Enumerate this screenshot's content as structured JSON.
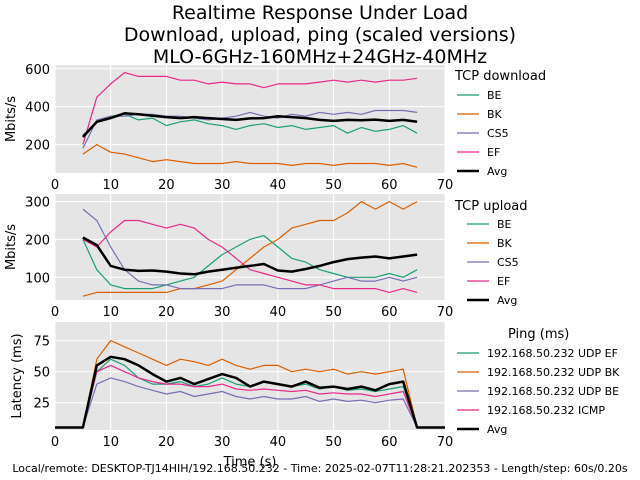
{
  "title_lines": [
    "Realtime Response Under Load",
    "Download, upload, ping (scaled versions)",
    "MLO-6GHz-160MHz+24GHz-40MHz"
  ],
  "footer": "Local/remote: DESKTOP-TJ14HIH/192.168.50.232 - Time: 2025-02-07T11:28:21.202353 - Length/step: 60s/0.20s",
  "colors": {
    "BE": "#1b9e77",
    "BK": "#d95f02",
    "CS5": "#7570b3",
    "EF": "#e7298a",
    "Avg": "#000000",
    "plot_bg": "#e5e5e5",
    "grid": "#ffffff"
  },
  "chart_data": [
    {
      "type": "line",
      "legend_title": "TCP download",
      "ylabel": "Mbits/s",
      "xlabel": "",
      "xlim": [
        0,
        70
      ],
      "ylim": [
        50,
        620
      ],
      "xticks": [
        0,
        10,
        20,
        30,
        40,
        50,
        60,
        70
      ],
      "yticks": [
        200,
        400,
        600
      ],
      "grid": true,
      "legend_position": "right",
      "x": [
        5,
        7.5,
        10,
        12.5,
        15,
        17.5,
        20,
        22.5,
        25,
        27.5,
        30,
        32.5,
        35,
        37.5,
        40,
        42.5,
        45,
        47.5,
        50,
        52.5,
        55,
        57.5,
        60,
        62.5,
        65
      ],
      "series": [
        {
          "name": "BE",
          "color_key": "BE",
          "values": [
            250,
            320,
            350,
            360,
            330,
            340,
            300,
            320,
            330,
            310,
            300,
            280,
            300,
            310,
            290,
            300,
            280,
            290,
            300,
            260,
            290,
            270,
            280,
            300,
            260
          ]
        },
        {
          "name": "BK",
          "color_key": "BK",
          "values": [
            150,
            200,
            160,
            150,
            130,
            110,
            120,
            110,
            100,
            100,
            100,
            110,
            100,
            100,
            100,
            90,
            100,
            100,
            90,
            100,
            100,
            100,
            90,
            100,
            80
          ]
        },
        {
          "name": "CS5",
          "color_key": "CS5",
          "values": [
            180,
            330,
            350,
            350,
            360,
            360,
            350,
            350,
            340,
            330,
            340,
            350,
            370,
            350,
            340,
            360,
            350,
            370,
            360,
            370,
            360,
            380,
            380,
            380,
            370
          ]
        },
        {
          "name": "EF",
          "color_key": "EF",
          "values": [
            200,
            450,
            520,
            580,
            560,
            560,
            560,
            540,
            540,
            520,
            530,
            520,
            520,
            500,
            520,
            520,
            520,
            530,
            540,
            530,
            540,
            530,
            540,
            540,
            550
          ]
        },
        {
          "name": "Avg",
          "color_key": "Avg",
          "values": [
            240,
            320,
            340,
            365,
            360,
            352,
            345,
            340,
            345,
            340,
            335,
            330,
            338,
            340,
            350,
            345,
            340,
            330,
            325,
            330,
            328,
            332,
            325,
            330,
            320
          ]
        }
      ]
    },
    {
      "type": "line",
      "legend_title": "TCP upload",
      "ylabel": "Mbits/s",
      "xlabel": "",
      "xlim": [
        0,
        70
      ],
      "ylim": [
        40,
        320
      ],
      "xticks": [
        0,
        10,
        20,
        30,
        40,
        50,
        60,
        70
      ],
      "yticks": [
        100,
        200,
        300
      ],
      "grid": true,
      "legend_position": "right",
      "x": [
        5,
        7.5,
        10,
        12.5,
        15,
        17.5,
        20,
        22.5,
        25,
        27.5,
        30,
        32.5,
        35,
        37.5,
        40,
        42.5,
        45,
        47.5,
        50,
        52.5,
        55,
        57.5,
        60,
        62.5,
        65
      ],
      "series": [
        {
          "name": "BE",
          "color_key": "BE",
          "values": [
            200,
            120,
            80,
            70,
            70,
            70,
            80,
            90,
            100,
            130,
            160,
            180,
            200,
            210,
            180,
            150,
            140,
            120,
            110,
            100,
            100,
            100,
            110,
            100,
            120
          ]
        },
        {
          "name": "BK",
          "color_key": "BK",
          "values": [
            50,
            60,
            60,
            60,
            60,
            60,
            60,
            70,
            70,
            80,
            90,
            120,
            150,
            180,
            200,
            230,
            240,
            250,
            250,
            270,
            300,
            280,
            300,
            280,
            300
          ]
        },
        {
          "name": "CS5",
          "color_key": "CS5",
          "values": [
            280,
            250,
            180,
            120,
            90,
            80,
            80,
            70,
            70,
            70,
            70,
            80,
            80,
            80,
            70,
            70,
            70,
            80,
            90,
            100,
            90,
            90,
            100,
            90,
            100
          ]
        },
        {
          "name": "EF",
          "color_key": "EF",
          "values": [
            200,
            180,
            220,
            250,
            250,
            240,
            230,
            240,
            230,
            200,
            180,
            150,
            120,
            110,
            100,
            90,
            80,
            80,
            70,
            70,
            70,
            70,
            60,
            70,
            60
          ]
        },
        {
          "name": "Avg",
          "color_key": "Avg",
          "values": [
            205,
            185,
            130,
            120,
            117,
            118,
            115,
            110,
            108,
            115,
            120,
            125,
            130,
            135,
            118,
            115,
            122,
            130,
            140,
            148,
            152,
            155,
            150,
            155,
            160
          ]
        }
      ]
    },
    {
      "type": "line",
      "legend_title": "Ping (ms)",
      "ylabel": "Latency (ms)",
      "xlabel": "Time (s)",
      "xlim": [
        0,
        70
      ],
      "ylim": [
        3,
        90
      ],
      "xticks": [
        0,
        10,
        20,
        30,
        40,
        50,
        60,
        70
      ],
      "yticks": [
        25,
        50,
        75
      ],
      "grid": true,
      "legend_position": "right",
      "x": [
        0,
        2.5,
        5,
        7.5,
        10,
        12.5,
        15,
        17.5,
        20,
        22.5,
        25,
        27.5,
        30,
        32.5,
        35,
        37.5,
        40,
        42.5,
        45,
        47.5,
        50,
        52.5,
        55,
        57.5,
        60,
        62.5,
        65,
        67.5,
        70
      ],
      "series": [
        {
          "name": "192.168.50.232 UDP EF",
          "color_key": "BE",
          "values": [
            5,
            5,
            5,
            50,
            60,
            55,
            45,
            40,
            40,
            42,
            38,
            40,
            45,
            40,
            38,
            42,
            40,
            38,
            40,
            36,
            38,
            35,
            36,
            34,
            36,
            38,
            5,
            5,
            5
          ]
        },
        {
          "name": "192.168.50.232 UDP BK",
          "color_key": "BK",
          "values": [
            5,
            5,
            5,
            60,
            75,
            70,
            65,
            60,
            55,
            60,
            58,
            55,
            60,
            55,
            52,
            55,
            55,
            50,
            52,
            50,
            52,
            48,
            50,
            48,
            50,
            52,
            5,
            5,
            5
          ]
        },
        {
          "name": "192.168.50.232 UDP BE",
          "color_key": "CS5",
          "values": [
            5,
            5,
            5,
            40,
            45,
            42,
            38,
            35,
            32,
            34,
            30,
            32,
            34,
            30,
            28,
            30,
            28,
            28,
            30,
            26,
            28,
            26,
            27,
            25,
            27,
            28,
            5,
            5,
            5
          ]
        },
        {
          "name": "192.168.50.232 ICMP",
          "color_key": "EF",
          "values": [
            5,
            5,
            5,
            50,
            55,
            50,
            45,
            42,
            40,
            40,
            38,
            38,
            40,
            36,
            35,
            36,
            35,
            34,
            35,
            32,
            33,
            32,
            32,
            30,
            32,
            34,
            5,
            5,
            5
          ]
        },
        {
          "name": "Avg",
          "color_key": "Avg",
          "values": [
            5,
            5,
            5,
            55,
            62,
            60,
            55,
            48,
            42,
            45,
            40,
            44,
            48,
            45,
            38,
            42,
            40,
            38,
            42,
            37,
            38,
            36,
            38,
            35,
            40,
            42,
            5,
            5,
            5
          ]
        }
      ]
    }
  ]
}
